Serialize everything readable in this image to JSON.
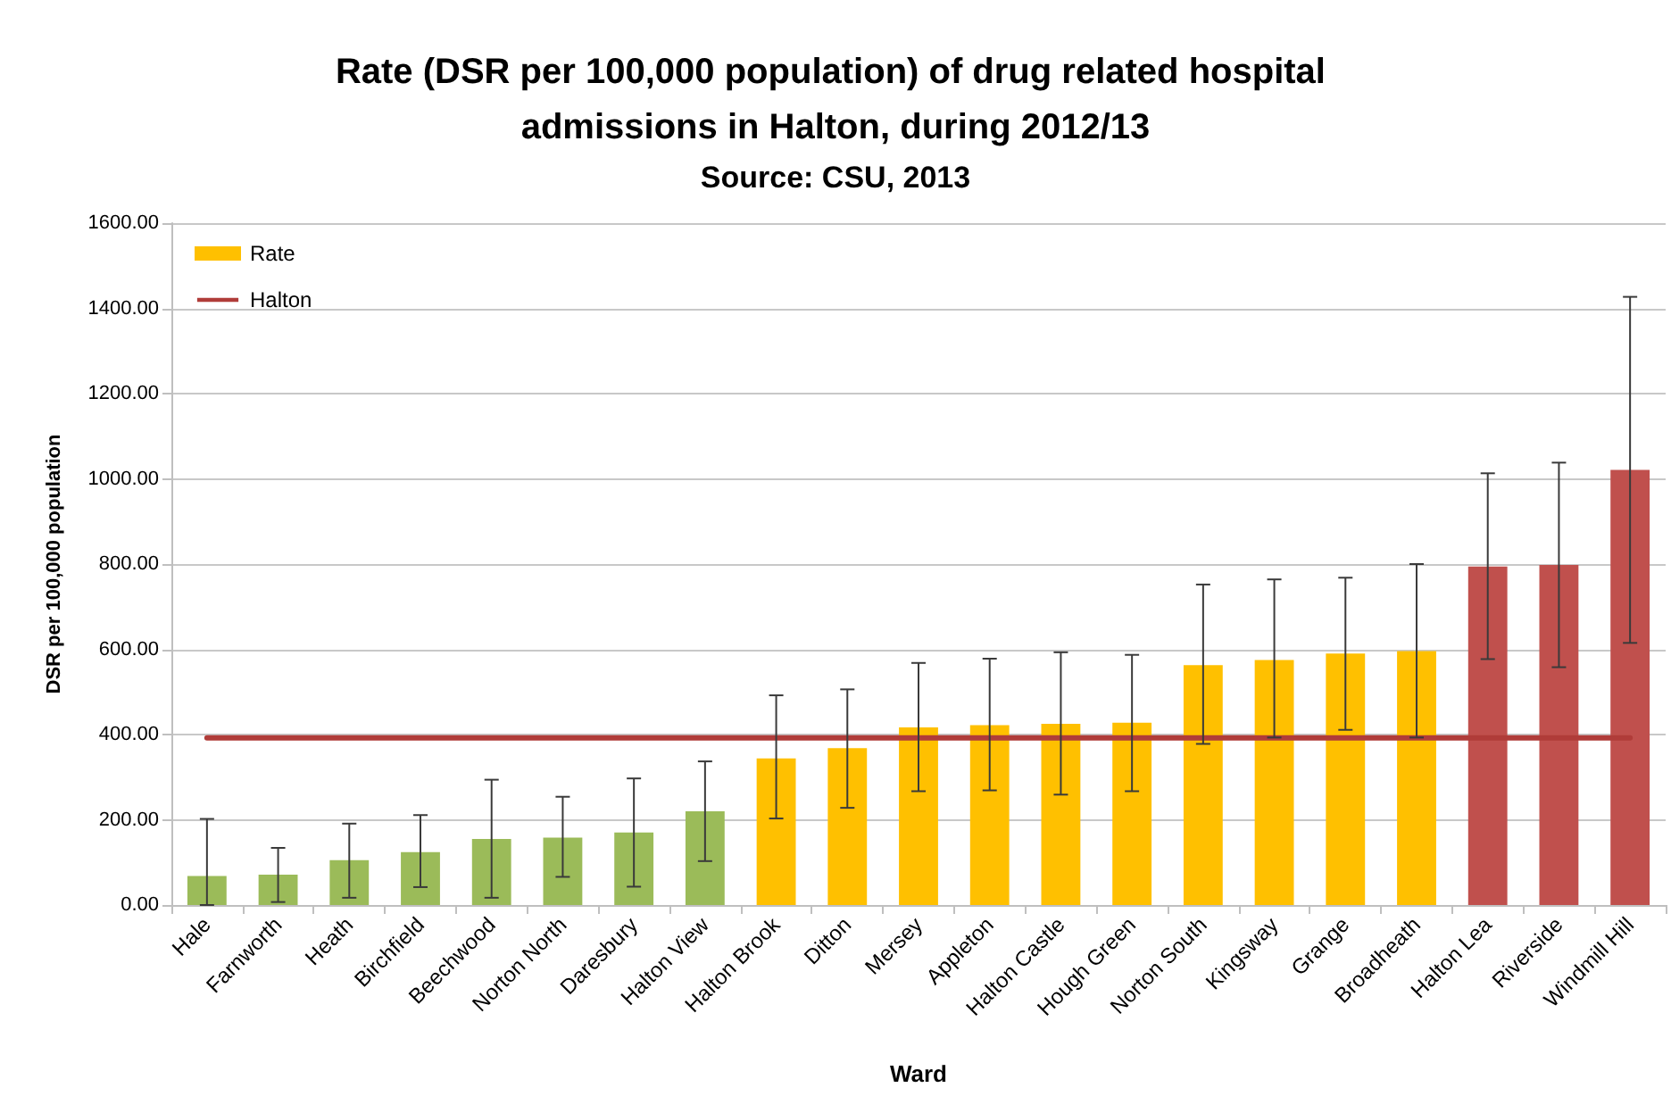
{
  "chart_data": {
    "type": "bar",
    "title": "Rate (DSR per 100,000 population) of drug related hospital admissions in Halton, during 2012/13",
    "annotations": [
      "Source: CSU, 2013"
    ],
    "xlabel": "Ward",
    "ylabel": "DSR per 100,000 population",
    "categories": [
      "Hale",
      "Farnworth",
      "Heath",
      "Birchfield",
      "Beechwood",
      "Norton North",
      "Daresbury",
      "Halton View",
      "Halton Brook",
      "Ditton",
      "Mersey",
      "Appleton",
      "Halton Castle",
      "Hough Green",
      "Norton South",
      "Kingsway",
      "Grange",
      "Broadheath",
      "Halton Lea",
      "Riverside",
      "Windmill Hill"
    ],
    "series": [
      {
        "name": "Rate",
        "color": "#ffc000",
        "colors": [
          "#9bbb59",
          "#9bbb59",
          "#9bbb59",
          "#9bbb59",
          "#9bbb59",
          "#9bbb59",
          "#9bbb59",
          "#9bbb59",
          "#ffc000",
          "#ffc000",
          "#ffc000",
          "#ffc000",
          "#ffc000",
          "#ffc000",
          "#ffc000",
          "#ffc000",
          "#ffc000",
          "#ffc000",
          "#c0504d",
          "#c0504d",
          "#c0504d"
        ],
        "values": [
          68,
          71,
          105,
          124,
          155,
          158,
          170,
          220,
          344,
          368,
          417,
          422,
          425,
          428,
          563,
          575,
          590,
          596,
          794,
          798,
          1021
        ],
        "errors": [
          [
            0,
            202
          ],
          [
            7,
            134
          ],
          [
            17,
            191
          ],
          [
            42,
            211
          ],
          [
            17,
            294
          ],
          [
            66,
            254
          ],
          [
            43,
            297
          ],
          [
            103,
            337
          ],
          [
            203,
            492
          ],
          [
            228,
            506
          ],
          [
            267,
            568
          ],
          [
            269,
            578
          ],
          [
            259,
            593
          ],
          [
            267,
            587
          ],
          [
            378,
            752
          ],
          [
            393,
            764
          ],
          [
            411,
            768
          ],
          [
            393,
            800
          ],
          [
            577,
            1013
          ],
          [
            558,
            1038
          ],
          [
            615,
            1427
          ]
        ]
      },
      {
        "name": "Halton",
        "type": "line",
        "color": "#b03c39",
        "values": [
          392,
          392,
          392,
          392,
          392,
          392,
          392,
          392,
          392,
          392,
          392,
          392,
          392,
          392,
          392,
          392,
          392,
          392,
          392,
          392,
          392
        ]
      }
    ],
    "ylim": [
      0,
      1600
    ],
    "yticks": [
      {
        "value": 0,
        "label": "0.00"
      },
      {
        "value": 200,
        "label": "200.00"
      },
      {
        "value": 400,
        "label": "400.00"
      },
      {
        "value": 600,
        "label": "600.00"
      },
      {
        "value": 800,
        "label": "800.00"
      },
      {
        "value": 1000,
        "label": "1000.00"
      },
      {
        "value": 1200,
        "label": "1200.00"
      },
      {
        "value": 1400,
        "label": "1400.00"
      },
      {
        "value": 1600,
        "label": "1600.00"
      }
    ],
    "grid": "y",
    "legend": "top left"
  }
}
